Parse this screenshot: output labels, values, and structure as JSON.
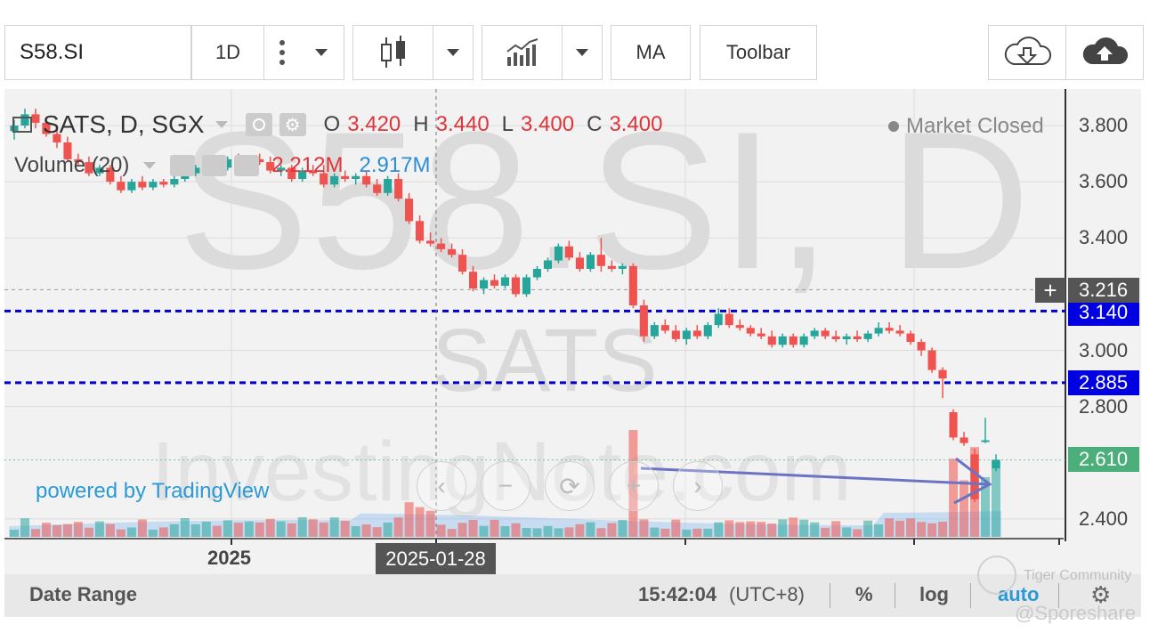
{
  "toolbar": {
    "symbol": "S58.SI",
    "interval": "1D",
    "ma_label": "MA",
    "toolbar_label": "Toolbar"
  },
  "legend": {
    "title": "SATS, D, SGX",
    "o_label": "O",
    "o_value": "3.420",
    "h_label": "H",
    "h_value": "3.440",
    "l_label": "L",
    "l_value": "3.400",
    "c_label": "C",
    "c_value": "3.400",
    "volume_label": "Volume (20)",
    "volume_value": "2.212M",
    "volume_ma_value": "2.917M",
    "market_status": "Market Closed"
  },
  "watermark": {
    "symbol": "S58.SI, D",
    "name": "SATS",
    "site": "InvestingNote.com",
    "powered_by": "powered by TradingView"
  },
  "price_axis": {
    "ticks": [
      "3.800",
      "3.600",
      "3.400",
      "3.000",
      "2.800",
      "2.400"
    ],
    "crosshair_price": "3.216",
    "line_upper": "3.140",
    "line_lower": "2.885",
    "last_price": "2.610"
  },
  "time_axis": {
    "year_label": "2025",
    "crosshair_date": "2025-01-28"
  },
  "bottom_bar": {
    "date_range": "Date Range",
    "time": "15:42:04",
    "timezone": "(UTC+8)",
    "percent": "%",
    "log": "log",
    "auto": "auto"
  },
  "credits": {
    "community": "Tiger Community",
    "handle": "@Sporeshare"
  },
  "colors": {
    "up": "#26a69a",
    "down": "#ef5350",
    "line_blue": "#0000cc",
    "last_price": "#4cae7a"
  },
  "chart_data": {
    "type": "candlestick",
    "symbol": "SATS, D, SGX",
    "ylim": [
      2.33,
      3.93
    ],
    "candles": [
      {
        "o": 3.78,
        "h": 3.82,
        "l": 3.75,
        "c": 3.8
      },
      {
        "o": 3.8,
        "h": 3.86,
        "l": 3.79,
        "c": 3.84
      },
      {
        "o": 3.84,
        "h": 3.86,
        "l": 3.79,
        "c": 3.81
      },
      {
        "o": 3.81,
        "h": 3.83,
        "l": 3.76,
        "c": 3.77
      },
      {
        "o": 3.77,
        "h": 3.79,
        "l": 3.72,
        "c": 3.74
      },
      {
        "o": 3.74,
        "h": 3.76,
        "l": 3.67,
        "c": 3.68
      },
      {
        "o": 3.68,
        "h": 3.7,
        "l": 3.66,
        "c": 3.67
      },
      {
        "o": 3.67,
        "h": 3.69,
        "l": 3.62,
        "c": 3.63
      },
      {
        "o": 3.63,
        "h": 3.66,
        "l": 3.62,
        "c": 3.65
      },
      {
        "o": 3.65,
        "h": 3.66,
        "l": 3.59,
        "c": 3.6
      },
      {
        "o": 3.6,
        "h": 3.62,
        "l": 3.56,
        "c": 3.57
      },
      {
        "o": 3.57,
        "h": 3.61,
        "l": 3.56,
        "c": 3.6
      },
      {
        "o": 3.6,
        "h": 3.62,
        "l": 3.57,
        "c": 3.58
      },
      {
        "o": 3.58,
        "h": 3.61,
        "l": 3.57,
        "c": 3.6
      },
      {
        "o": 3.6,
        "h": 3.61,
        "l": 3.58,
        "c": 3.59
      },
      {
        "o": 3.59,
        "h": 3.62,
        "l": 3.58,
        "c": 3.61
      },
      {
        "o": 3.61,
        "h": 3.64,
        "l": 3.6,
        "c": 3.63
      },
      {
        "o": 3.63,
        "h": 3.66,
        "l": 3.62,
        "c": 3.65
      },
      {
        "o": 3.65,
        "h": 3.68,
        "l": 3.63,
        "c": 3.67
      },
      {
        "o": 3.67,
        "h": 3.69,
        "l": 3.64,
        "c": 3.65
      },
      {
        "o": 3.65,
        "h": 3.69,
        "l": 3.64,
        "c": 3.68
      },
      {
        "o": 3.68,
        "h": 3.7,
        "l": 3.64,
        "c": 3.65
      },
      {
        "o": 3.65,
        "h": 3.69,
        "l": 3.64,
        "c": 3.68
      },
      {
        "o": 3.68,
        "h": 3.7,
        "l": 3.66,
        "c": 3.67
      },
      {
        "o": 3.67,
        "h": 3.69,
        "l": 3.63,
        "c": 3.64
      },
      {
        "o": 3.64,
        "h": 3.66,
        "l": 3.62,
        "c": 3.65
      },
      {
        "o": 3.65,
        "h": 3.66,
        "l": 3.6,
        "c": 3.61
      },
      {
        "o": 3.61,
        "h": 3.65,
        "l": 3.6,
        "c": 3.64
      },
      {
        "o": 3.64,
        "h": 3.66,
        "l": 3.62,
        "c": 3.63
      },
      {
        "o": 3.63,
        "h": 3.66,
        "l": 3.58,
        "c": 3.59
      },
      {
        "o": 3.59,
        "h": 3.63,
        "l": 3.58,
        "c": 3.62
      },
      {
        "o": 3.62,
        "h": 3.64,
        "l": 3.6,
        "c": 3.61
      },
      {
        "o": 3.61,
        "h": 3.63,
        "l": 3.59,
        "c": 3.62
      },
      {
        "o": 3.62,
        "h": 3.64,
        "l": 3.58,
        "c": 3.59
      },
      {
        "o": 3.59,
        "h": 3.61,
        "l": 3.55,
        "c": 3.56
      },
      {
        "o": 3.56,
        "h": 3.62,
        "l": 3.55,
        "c": 3.61
      },
      {
        "o": 3.61,
        "h": 3.63,
        "l": 3.53,
        "c": 3.54
      },
      {
        "o": 3.54,
        "h": 3.56,
        "l": 3.45,
        "c": 3.46
      },
      {
        "o": 3.46,
        "h": 3.48,
        "l": 3.38,
        "c": 3.39
      },
      {
        "o": 3.39,
        "h": 3.42,
        "l": 3.37,
        "c": 3.38
      },
      {
        "o": 3.38,
        "h": 3.4,
        "l": 3.35,
        "c": 3.36
      },
      {
        "o": 3.36,
        "h": 3.38,
        "l": 3.33,
        "c": 3.34
      },
      {
        "o": 3.34,
        "h": 3.36,
        "l": 3.27,
        "c": 3.28
      },
      {
        "o": 3.28,
        "h": 3.3,
        "l": 3.21,
        "c": 3.22
      },
      {
        "o": 3.22,
        "h": 3.26,
        "l": 3.2,
        "c": 3.25
      },
      {
        "o": 3.25,
        "h": 3.27,
        "l": 3.22,
        "c": 3.23
      },
      {
        "o": 3.23,
        "h": 3.27,
        "l": 3.22,
        "c": 3.26
      },
      {
        "o": 3.26,
        "h": 3.27,
        "l": 3.19,
        "c": 3.2
      },
      {
        "o": 3.2,
        "h": 3.27,
        "l": 3.19,
        "c": 3.26
      },
      {
        "o": 3.26,
        "h": 3.3,
        "l": 3.25,
        "c": 3.29
      },
      {
        "o": 3.29,
        "h": 3.33,
        "l": 3.28,
        "c": 3.32
      },
      {
        "o": 3.32,
        "h": 3.38,
        "l": 3.31,
        "c": 3.37
      },
      {
        "o": 3.37,
        "h": 3.39,
        "l": 3.32,
        "c": 3.33
      },
      {
        "o": 3.33,
        "h": 3.35,
        "l": 3.28,
        "c": 3.29
      },
      {
        "o": 3.29,
        "h": 3.35,
        "l": 3.28,
        "c": 3.34
      },
      {
        "o": 3.34,
        "h": 3.4,
        "l": 3.28,
        "c": 3.3
      },
      {
        "o": 3.3,
        "h": 3.32,
        "l": 3.28,
        "c": 3.29
      },
      {
        "o": 3.29,
        "h": 3.31,
        "l": 3.27,
        "c": 3.3
      },
      {
        "o": 3.3,
        "h": 3.31,
        "l": 3.15,
        "c": 3.16
      },
      {
        "o": 3.16,
        "h": 3.18,
        "l": 3.03,
        "c": 3.05
      },
      {
        "o": 3.05,
        "h": 3.1,
        "l": 3.04,
        "c": 3.09
      },
      {
        "o": 3.09,
        "h": 3.11,
        "l": 3.06,
        "c": 3.07
      },
      {
        "o": 3.07,
        "h": 3.09,
        "l": 3.03,
        "c": 3.04
      },
      {
        "o": 3.04,
        "h": 3.08,
        "l": 3.02,
        "c": 3.07
      },
      {
        "o": 3.07,
        "h": 3.09,
        "l": 3.04,
        "c": 3.05
      },
      {
        "o": 3.05,
        "h": 3.1,
        "l": 3.04,
        "c": 3.09
      },
      {
        "o": 3.09,
        "h": 3.15,
        "l": 3.08,
        "c": 3.13
      },
      {
        "o": 3.13,
        "h": 3.15,
        "l": 3.08,
        "c": 3.09
      },
      {
        "o": 3.09,
        "h": 3.11,
        "l": 3.07,
        "c": 3.08
      },
      {
        "o": 3.08,
        "h": 3.09,
        "l": 3.05,
        "c": 3.06
      },
      {
        "o": 3.06,
        "h": 3.08,
        "l": 3.04,
        "c": 3.05
      },
      {
        "o": 3.05,
        "h": 3.07,
        "l": 3.01,
        "c": 3.02
      },
      {
        "o": 3.02,
        "h": 3.06,
        "l": 3.01,
        "c": 3.05
      },
      {
        "o": 3.05,
        "h": 3.06,
        "l": 3.01,
        "c": 3.02
      },
      {
        "o": 3.02,
        "h": 3.06,
        "l": 3.01,
        "c": 3.05
      },
      {
        "o": 3.05,
        "h": 3.08,
        "l": 3.04,
        "c": 3.07
      },
      {
        "o": 3.07,
        "h": 3.08,
        "l": 3.04,
        "c": 3.05
      },
      {
        "o": 3.05,
        "h": 3.07,
        "l": 3.03,
        "c": 3.04
      },
      {
        "o": 3.04,
        "h": 3.06,
        "l": 3.02,
        "c": 3.05
      },
      {
        "o": 3.05,
        "h": 3.07,
        "l": 3.03,
        "c": 3.04
      },
      {
        "o": 3.04,
        "h": 3.07,
        "l": 3.03,
        "c": 3.06
      },
      {
        "o": 3.06,
        "h": 3.1,
        "l": 3.05,
        "c": 3.08
      },
      {
        "o": 3.08,
        "h": 3.1,
        "l": 3.06,
        "c": 3.07
      },
      {
        "o": 3.07,
        "h": 3.09,
        "l": 3.05,
        "c": 3.06
      },
      {
        "o": 3.06,
        "h": 3.07,
        "l": 3.02,
        "c": 3.03
      },
      {
        "o": 3.03,
        "h": 3.04,
        "l": 2.98,
        "c": 3.0
      },
      {
        "o": 3.0,
        "h": 3.01,
        "l": 2.92,
        "c": 2.93
      },
      {
        "o": 2.93,
        "h": 2.94,
        "l": 2.83,
        "c": 2.9
      },
      {
        "o": 2.78,
        "h": 2.79,
        "l": 2.68,
        "c": 2.69
      },
      {
        "o": 2.69,
        "h": 2.71,
        "l": 2.66,
        "c": 2.67
      },
      {
        "o": 2.63,
        "h": 2.65,
        "l": 2.46,
        "c": 2.47
      },
      {
        "o": 2.68,
        "h": 2.76,
        "l": 2.67,
        "c": 2.68
      },
      {
        "o": 2.58,
        "h": 2.63,
        "l": 2.57,
        "c": 2.61
      }
    ],
    "volume_ma": "2.917M"
  }
}
